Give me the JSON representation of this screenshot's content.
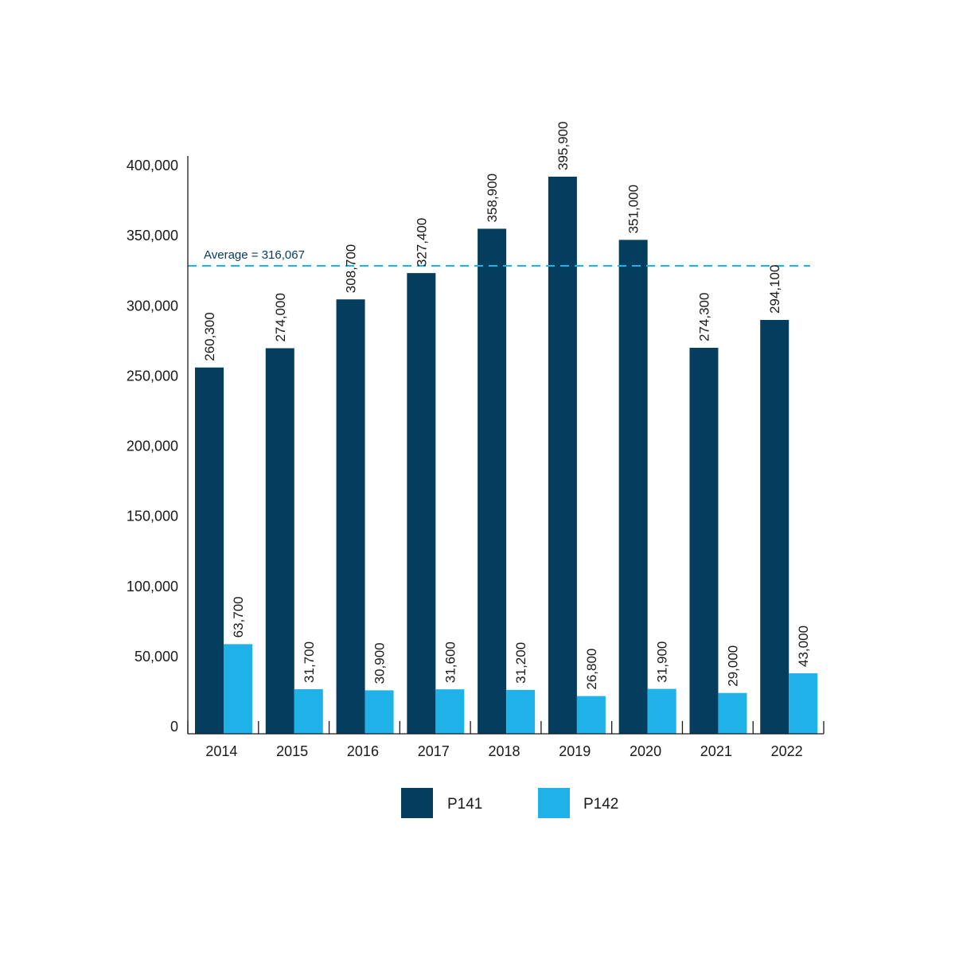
{
  "chart_data": {
    "type": "bar",
    "categories": [
      "2014",
      "2015",
      "2016",
      "2017",
      "2018",
      "2019",
      "2020",
      "2021",
      "2022"
    ],
    "series": [
      {
        "name": "P141",
        "color": "#043d5d",
        "values": [
          260300,
          274000,
          308700,
          327400,
          358900,
          395900,
          351000,
          274300,
          294100
        ],
        "labels": [
          "260,300",
          "274,000",
          "308,700",
          "327,400",
          "358,900",
          "395,900",
          "351,000",
          "274,300",
          "294,100"
        ]
      },
      {
        "name": "P142",
        "color": "#1fb2e8",
        "values": [
          63700,
          31700,
          30900,
          31600,
          31200,
          26800,
          31900,
          29000,
          43000
        ],
        "labels": [
          "63,700",
          "31,700",
          "30,900",
          "31,600",
          "31,200",
          "26,800",
          "31,900",
          "29,000",
          "43,000"
        ]
      }
    ],
    "ylim": [
      0,
      400000
    ],
    "yticks": [
      0,
      50000,
      100000,
      150000,
      200000,
      250000,
      300000,
      350000,
      400000
    ],
    "ytick_labels": [
      "0",
      "50,000",
      "100,000",
      "150,000",
      "200,000",
      "250,000",
      "300,000",
      "350,000",
      "400,000"
    ],
    "reference_line": {
      "value": 316067,
      "label": "Average = 316,067",
      "color": "#1fb2e8",
      "label_color": "#043d5d",
      "style": "dashed"
    },
    "legend": {
      "placement": "bottom-center",
      "entries": [
        "P141",
        "P142"
      ]
    },
    "grid": false
  }
}
